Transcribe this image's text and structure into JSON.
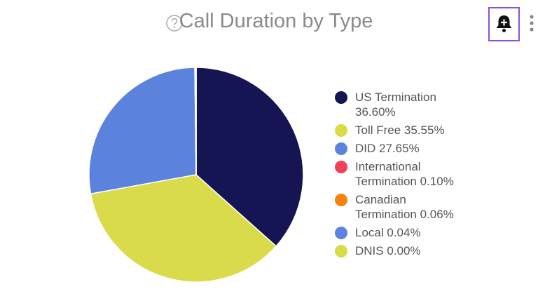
{
  "chart_data": {
    "type": "pie",
    "title": "Call Duration by Type",
    "series": [
      {
        "name": "US Termination",
        "color": "#141552",
        "values": [
          36.6
        ],
        "value_labels": [
          "36.60%"
        ]
      },
      {
        "name": "Toll Free",
        "color": "#d9db4a",
        "values": [
          35.55
        ],
        "value_labels": [
          "35.55%"
        ]
      },
      {
        "name": "DID",
        "color": "#5b83de",
        "values": [
          27.65
        ],
        "value_labels": [
          "27.65%"
        ]
      },
      {
        "name": "International Termination",
        "color": "#f2405a",
        "values": [
          0.1
        ],
        "value_labels": [
          "0.10%"
        ]
      },
      {
        "name": "Canadian Termination",
        "color": "#f5820d",
        "values": [
          0.06
        ],
        "value_labels": [
          "0.06%"
        ]
      },
      {
        "name": "Local",
        "color": "#5b83de",
        "values": [
          0.04
        ],
        "value_labels": [
          "0.04%"
        ]
      },
      {
        "name": "DNIS",
        "color": "#d9db4a",
        "values": [
          0.0
        ],
        "value_labels": [
          "0.00%"
        ]
      }
    ],
    "legend": "right"
  }
}
